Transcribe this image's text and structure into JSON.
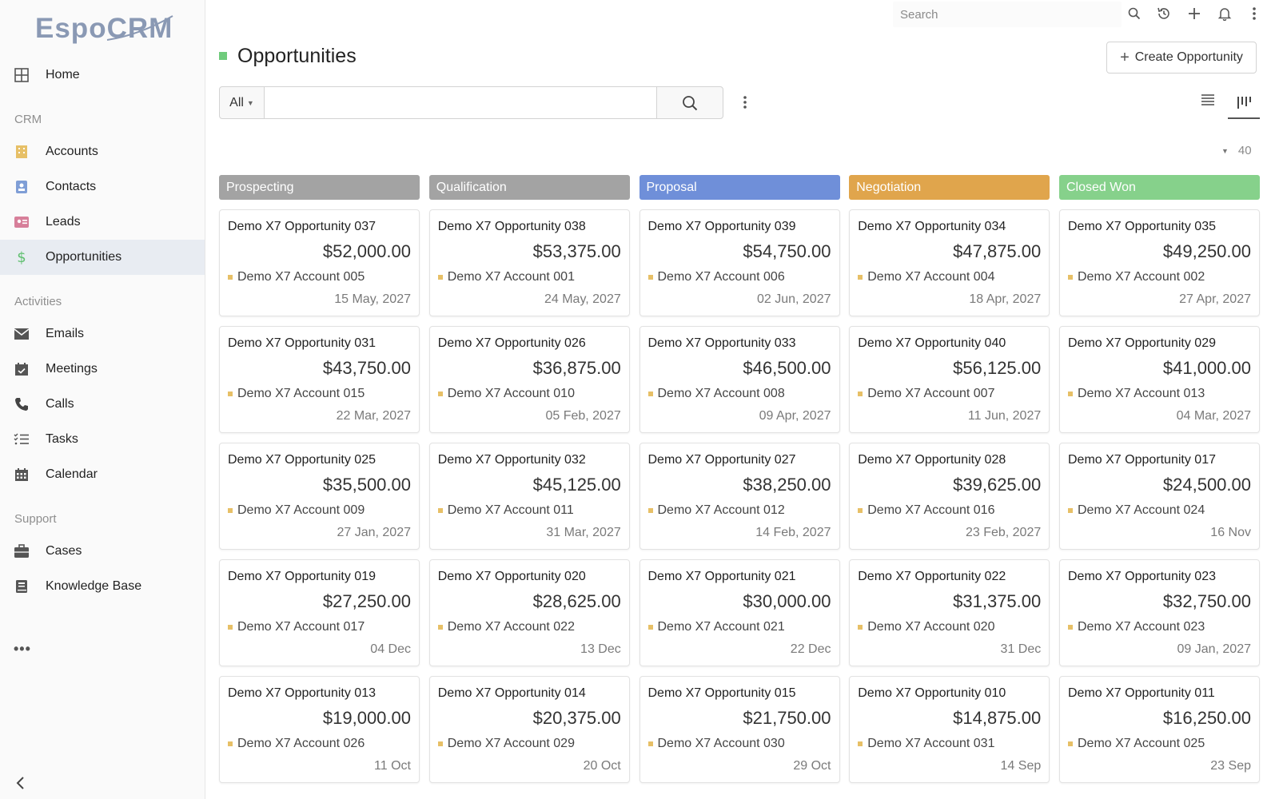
{
  "app": {
    "logo_text": "EspoCRM"
  },
  "sidebar": {
    "items": [
      {
        "type": "item",
        "label": "Home",
        "icon": "grid-icon",
        "active": false
      },
      {
        "type": "section",
        "label": "CRM"
      },
      {
        "type": "item",
        "label": "Accounts",
        "icon": "building-icon",
        "active": false
      },
      {
        "type": "item",
        "label": "Contacts",
        "icon": "contact-card-icon",
        "active": false
      },
      {
        "type": "item",
        "label": "Leads",
        "icon": "id-card-icon",
        "active": false
      },
      {
        "type": "item",
        "label": "Opportunities",
        "icon": "dollar-icon",
        "active": true
      },
      {
        "type": "section",
        "label": "Activities"
      },
      {
        "type": "item",
        "label": "Emails",
        "icon": "envelope-icon",
        "active": false
      },
      {
        "type": "item",
        "label": "Meetings",
        "icon": "calendar-check-icon",
        "active": false
      },
      {
        "type": "item",
        "label": "Calls",
        "icon": "phone-icon",
        "active": false
      },
      {
        "type": "item",
        "label": "Tasks",
        "icon": "task-list-icon",
        "active": false
      },
      {
        "type": "item",
        "label": "Calendar",
        "icon": "calendar-icon",
        "active": false
      },
      {
        "type": "section",
        "label": "Support"
      },
      {
        "type": "item",
        "label": "Cases",
        "icon": "briefcase-icon",
        "active": false
      },
      {
        "type": "item",
        "label": "Knowledge Base",
        "icon": "book-icon",
        "active": false
      }
    ],
    "more_label": "•••"
  },
  "topbar": {
    "search_placeholder": "Search"
  },
  "header": {
    "title": "Opportunities",
    "title_color": "#6fcb7c",
    "create_label": "Create Opportunity"
  },
  "filter": {
    "preset": "All",
    "query": ""
  },
  "total_count": "40",
  "kanban": {
    "columns": [
      {
        "name": "Prospecting",
        "color": "#a3a3a3",
        "cards": [
          {
            "name": "Demo X7 Opportunity 037",
            "amount": "$52,000.00",
            "account": "Demo X7 Account 005",
            "date": "15 May, 2027"
          },
          {
            "name": "Demo X7 Opportunity 031",
            "amount": "$43,750.00",
            "account": "Demo X7 Account 015",
            "date": "22 Mar, 2027"
          },
          {
            "name": "Demo X7 Opportunity 025",
            "amount": "$35,500.00",
            "account": "Demo X7 Account 009",
            "date": "27 Jan, 2027"
          },
          {
            "name": "Demo X7 Opportunity 019",
            "amount": "$27,250.00",
            "account": "Demo X7 Account 017",
            "date": "04 Dec"
          },
          {
            "name": "Demo X7 Opportunity 013",
            "amount": "$19,000.00",
            "account": "Demo X7 Account 026",
            "date": "11 Oct"
          }
        ]
      },
      {
        "name": "Qualification",
        "color": "#a3a3a3",
        "cards": [
          {
            "name": "Demo X7 Opportunity 038",
            "amount": "$53,375.00",
            "account": "Demo X7 Account 001",
            "date": "24 May, 2027"
          },
          {
            "name": "Demo X7 Opportunity 026",
            "amount": "$36,875.00",
            "account": "Demo X7 Account 010",
            "date": "05 Feb, 2027"
          },
          {
            "name": "Demo X7 Opportunity 032",
            "amount": "$45,125.00",
            "account": "Demo X7 Account 011",
            "date": "31 Mar, 2027"
          },
          {
            "name": "Demo X7 Opportunity 020",
            "amount": "$28,625.00",
            "account": "Demo X7 Account 022",
            "date": "13 Dec"
          },
          {
            "name": "Demo X7 Opportunity 014",
            "amount": "$20,375.00",
            "account": "Demo X7 Account 029",
            "date": "20 Oct"
          }
        ]
      },
      {
        "name": "Proposal",
        "color": "#6f8fd9",
        "cards": [
          {
            "name": "Demo X7 Opportunity 039",
            "amount": "$54,750.00",
            "account": "Demo X7 Account 006",
            "date": "02 Jun, 2027"
          },
          {
            "name": "Demo X7 Opportunity 033",
            "amount": "$46,500.00",
            "account": "Demo X7 Account 008",
            "date": "09 Apr, 2027"
          },
          {
            "name": "Demo X7 Opportunity 027",
            "amount": "$38,250.00",
            "account": "Demo X7 Account 012",
            "date": "14 Feb, 2027"
          },
          {
            "name": "Demo X7 Opportunity 021",
            "amount": "$30,000.00",
            "account": "Demo X7 Account 021",
            "date": "22 Dec"
          },
          {
            "name": "Demo X7 Opportunity 015",
            "amount": "$21,750.00",
            "account": "Demo X7 Account 030",
            "date": "29 Oct"
          }
        ]
      },
      {
        "name": "Negotiation",
        "color": "#e0a54c",
        "cards": [
          {
            "name": "Demo X7 Opportunity 034",
            "amount": "$47,875.00",
            "account": "Demo X7 Account 004",
            "date": "18 Apr, 2027"
          },
          {
            "name": "Demo X7 Opportunity 040",
            "amount": "$56,125.00",
            "account": "Demo X7 Account 007",
            "date": "11 Jun, 2027"
          },
          {
            "name": "Demo X7 Opportunity 028",
            "amount": "$39,625.00",
            "account": "Demo X7 Account 016",
            "date": "23 Feb, 2027"
          },
          {
            "name": "Demo X7 Opportunity 022",
            "amount": "$31,375.00",
            "account": "Demo X7 Account 020",
            "date": "31 Dec"
          },
          {
            "name": "Demo X7 Opportunity 010",
            "amount": "$14,875.00",
            "account": "Demo X7 Account 031",
            "date": "14 Sep"
          }
        ]
      },
      {
        "name": "Closed Won",
        "color": "#86d18b",
        "cards": [
          {
            "name": "Demo X7 Opportunity 035",
            "amount": "$49,250.00",
            "account": "Demo X7 Account 002",
            "date": "27 Apr, 2027"
          },
          {
            "name": "Demo X7 Opportunity 029",
            "amount": "$41,000.00",
            "account": "Demo X7 Account 013",
            "date": "04 Mar, 2027"
          },
          {
            "name": "Demo X7 Opportunity 017",
            "amount": "$24,500.00",
            "account": "Demo X7 Account 024",
            "date": "16 Nov"
          },
          {
            "name": "Demo X7 Opportunity 023",
            "amount": "$32,750.00",
            "account": "Demo X7 Account 023",
            "date": "09 Jan, 2027"
          },
          {
            "name": "Demo X7 Opportunity 011",
            "amount": "$16,250.00",
            "account": "Demo X7 Account 025",
            "date": "23 Sep"
          }
        ]
      }
    ]
  }
}
